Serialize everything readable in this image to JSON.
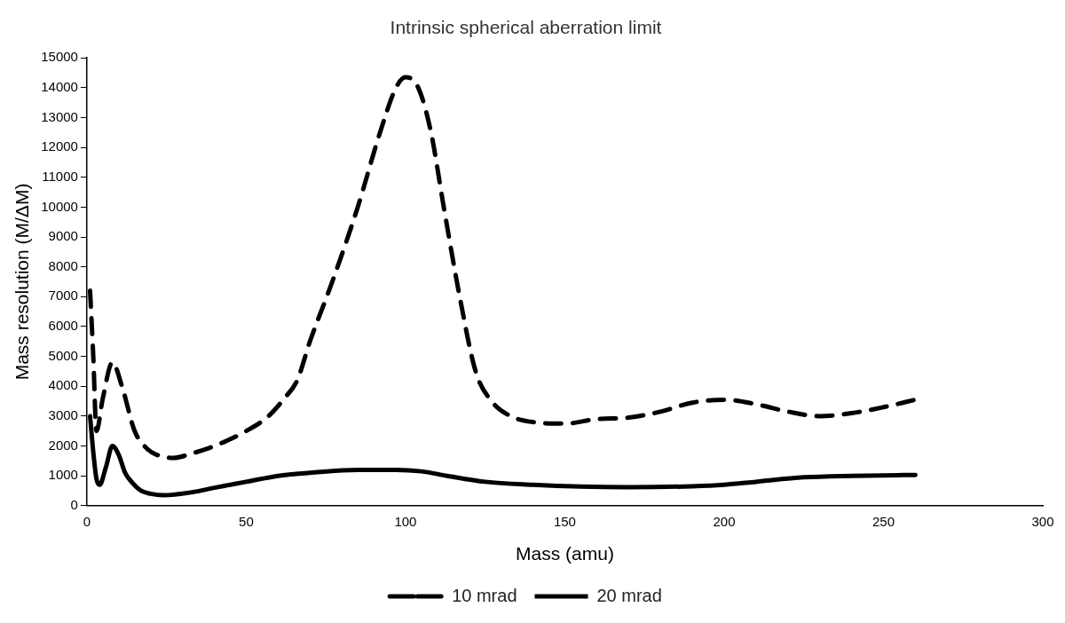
{
  "chart_data": {
    "type": "line",
    "title": "Intrinsic spherical aberration limit",
    "xlabel": "Mass (amu)",
    "ylabel": "Mass resolution (M/ΔM)",
    "xlim": [
      0,
      300
    ],
    "xticks": [
      0,
      50,
      100,
      150,
      200,
      250,
      300
    ],
    "ylim": [
      0,
      15000
    ],
    "yticks": [
      0,
      1000,
      2000,
      3000,
      4000,
      5000,
      6000,
      7000,
      8000,
      9000,
      10000,
      11000,
      12000,
      13000,
      14000,
      15000
    ],
    "grid": false,
    "legend": "bottom",
    "marker": "none",
    "series": [
      {
        "name": "10 mrad",
        "color": "#000000",
        "line_style": "dashed",
        "x": [
          1,
          2,
          3,
          5,
          8,
          11,
          15,
          19,
          22,
          27,
          33,
          40,
          50,
          57,
          62,
          66,
          70,
          77,
          85,
          92,
          97,
          100,
          104,
          108,
          112,
          117,
          122,
          127,
          133,
          140,
          150,
          160,
          170,
          180,
          190,
          200,
          210,
          220,
          230,
          240,
          250,
          260
        ],
        "values": [
          7200,
          5000,
          2500,
          3600,
          4800,
          4000,
          2500,
          1900,
          1700,
          1600,
          1750,
          2000,
          2500,
          3000,
          3600,
          4200,
          5500,
          7500,
          10000,
          12500,
          14000,
          14350,
          14000,
          12500,
          10000,
          7000,
          4500,
          3500,
          3000,
          2800,
          2750,
          2900,
          2950,
          3150,
          3450,
          3550,
          3400,
          3150,
          3000,
          3100,
          3300,
          3550
        ]
      },
      {
        "name": "20 mrad",
        "color": "#000000",
        "line_style": "solid",
        "x": [
          1,
          2,
          3,
          4,
          6,
          8,
          10,
          12,
          14,
          17,
          20,
          24,
          33,
          40,
          50,
          60,
          70,
          85,
          97,
          105,
          113,
          125,
          140,
          155,
          170,
          190,
          200,
          210,
          225,
          240,
          260
        ],
        "values": [
          3000,
          1800,
          900,
          700,
          1300,
          2000,
          1700,
          1100,
          800,
          500,
          400,
          350,
          450,
          600,
          800,
          1000,
          1100,
          1200,
          1200,
          1150,
          1000,
          800,
          700,
          640,
          620,
          650,
          700,
          800,
          950,
          1000,
          1030
        ]
      }
    ]
  }
}
